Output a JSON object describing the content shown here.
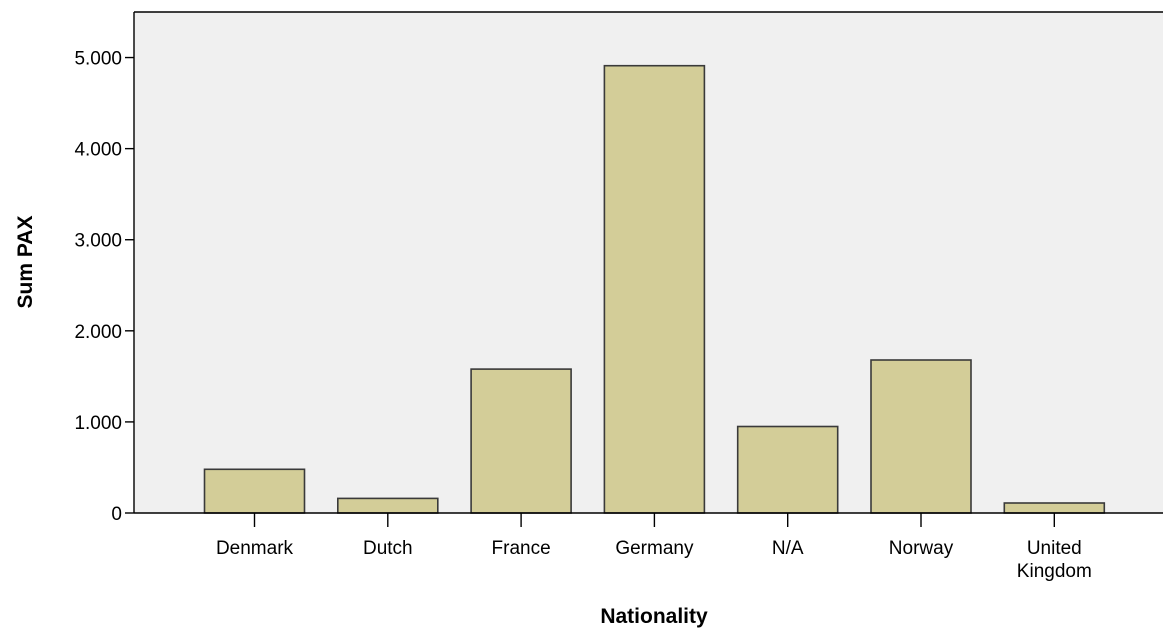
{
  "chart_data": {
    "type": "bar",
    "categories": [
      "Denmark",
      "Dutch",
      "France",
      "Germany",
      "N/A",
      "Norway",
      "United Kingdom"
    ],
    "category_labels": [
      [
        "Denmark"
      ],
      [
        "Dutch"
      ],
      [
        "France"
      ],
      [
        "Germany"
      ],
      [
        "N/A"
      ],
      [
        "Norway"
      ],
      [
        "United",
        "Kingdom"
      ]
    ],
    "values": [
      480,
      160,
      1580,
      4910,
      950,
      1680,
      110
    ],
    "xlabel": "Nationality",
    "ylabel": "Sum PAX",
    "ylim": [
      0,
      5500
    ],
    "yticks": [
      0,
      1000,
      2000,
      3000,
      4000,
      5000
    ],
    "ytick_labels": [
      "0",
      "1.000",
      "2.000",
      "3.000",
      "4.000",
      "5.000"
    ],
    "grid": false,
    "legend": "none",
    "colors": {
      "bar_fill": "#d3cd98",
      "bar_stroke": "#3a3a3a",
      "plot_background": "#f0f0f0",
      "axis": "#000000"
    }
  }
}
